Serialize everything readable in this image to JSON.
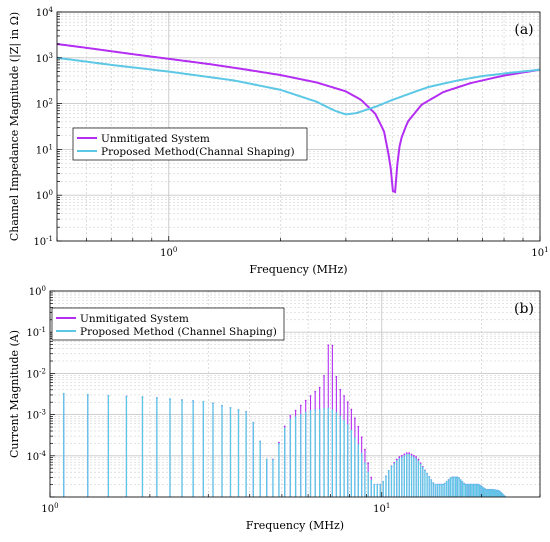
{
  "colors": {
    "unmitigated": "#b42ef2",
    "proposed": "#5cc8e6",
    "grid": "#c8c8c8",
    "frame": "#000000"
  },
  "chart_data": [
    {
      "panel_label": "(a)",
      "type": "line",
      "xscale": "log",
      "yscale": "log",
      "xlim": [
        0.5,
        10
      ],
      "ylim": [
        0.1,
        10000
      ],
      "xlabel": "Frequency (MHz)",
      "ylabel": "Channel Impedance Magnitude (|Z| in Ω)",
      "x_ticks": [
        {
          "v": 1,
          "label": "10",
          "sup": "0"
        },
        {
          "v": 10,
          "label": "10",
          "sup": "1"
        }
      ],
      "y_ticks": [
        {
          "v": 0.1,
          "label": "10",
          "sup": "-1"
        },
        {
          "v": 1,
          "label": "10",
          "sup": "0"
        },
        {
          "v": 10,
          "label": "10",
          "sup": "1"
        },
        {
          "v": 100,
          "label": "10",
          "sup": "2"
        },
        {
          "v": 1000,
          "label": "10",
          "sup": "3"
        },
        {
          "v": 10000,
          "label": "10",
          "sup": "4"
        }
      ],
      "grid": true,
      "legend_position": "left-middle",
      "series": [
        {
          "name": "Unmitigated System",
          "x": [
            0.5,
            0.6,
            0.8,
            1.0,
            1.3,
            1.6,
            2.0,
            2.5,
            3.0,
            3.3,
            3.6,
            3.8,
            3.95,
            4.05,
            4.1,
            4.2,
            4.4,
            4.8,
            5.5,
            6.5,
            8.0,
            10.0
          ],
          "y": [
            2000,
            1650,
            1200,
            950,
            720,
            560,
            420,
            290,
            185,
            120,
            60,
            25,
            5,
            0.6,
            3,
            15,
            40,
            95,
            180,
            280,
            410,
            550
          ]
        },
        {
          "name": "Proposed Method(Channal Shaping)",
          "x": [
            0.5,
            0.7,
            1.0,
            1.5,
            2.0,
            2.5,
            2.8,
            3.0,
            3.2,
            3.6,
            4.0,
            4.5,
            5.0,
            6.0,
            7.0,
            8.5,
            10.0
          ],
          "y": [
            1000,
            700,
            500,
            320,
            200,
            110,
            70,
            58,
            62,
            85,
            120,
            170,
            230,
            320,
            400,
            480,
            550
          ]
        }
      ]
    },
    {
      "panel_label": "(b)",
      "type": "stem",
      "xscale": "log",
      "yscale": "log",
      "xlim": [
        1,
        30
      ],
      "ylim": [
        1e-05,
        1
      ],
      "xlabel": "Frequency (MHz)",
      "ylabel": "Current Magnitude (A)",
      "x_ticks": [
        {
          "v": 1,
          "label": "10",
          "sup": "0"
        },
        {
          "v": 10,
          "label": "10",
          "sup": "1"
        }
      ],
      "y_ticks": [
        {
          "v": 0.0001,
          "label": "10",
          "sup": "-4"
        },
        {
          "v": 0.001,
          "label": "10",
          "sup": "-3"
        },
        {
          "v": 0.01,
          "label": "10",
          "sup": "-2"
        },
        {
          "v": 0.1,
          "label": "10",
          "sup": "-1"
        },
        {
          "v": 1,
          "label": "10",
          "sup": "0"
        }
      ],
      "grid": true,
      "legend_position": "top-left",
      "harmonic_spacing_mhz": 0.2,
      "first_harmonic_mhz": 1.1,
      "series": [
        {
          "name": "Unmitigated System",
          "envelope_x": [
            1.1,
            2.0,
            3.0,
            4.0,
            4.6,
            5.2,
            6.0,
            6.5,
            6.8,
            7.0,
            7.2,
            7.5,
            8.0,
            8.6,
            9.0,
            9.4,
            10.0,
            10.6,
            11.2,
            12.0,
            12.8,
            13.6,
            14.4,
            15.4,
            16.2,
            17.0,
            17.8,
            18.6,
            19.6,
            20.6,
            21.6,
            22.6,
            23.6
          ],
          "envelope_y": [
            0.0032,
            0.0026,
            0.002,
            0.0011,
            5e-05,
            0.0008,
            0.0025,
            0.0045,
            0.012,
            0.19,
            0.012,
            0.004,
            0.0017,
            0.0004,
            0.0001,
            2e-05,
            2e-05,
            5e-05,
            9e-05,
            0.00012,
            9e-05,
            4e-05,
            2e-05,
            2e-05,
            3e-05,
            3e-05,
            2e-05,
            2e-05,
            2e-05,
            1.5e-05,
            1.5e-05,
            1.4e-05,
            1e-05
          ]
        },
        {
          "name": "Proposed Method (Channel Shaping)",
          "envelope_x": [
            1.1,
            2.0,
            3.0,
            4.0,
            4.6,
            5.2,
            6.0,
            6.5,
            6.8,
            7.0,
            7.2,
            7.5,
            8.0,
            8.6,
            9.0,
            9.4,
            10.0,
            10.6,
            11.2,
            12.0,
            12.8,
            13.6,
            14.4,
            15.4,
            16.2,
            17.0,
            17.8,
            18.6,
            19.6,
            20.6,
            21.6,
            22.6,
            23.6
          ],
          "envelope_y": [
            0.0032,
            0.0026,
            0.002,
            0.0011,
            5e-05,
            0.0007,
            0.0012,
            0.0013,
            0.0014,
            0.0014,
            0.0012,
            0.0009,
            0.0005,
            0.00015,
            5e-05,
            2e-05,
            2e-05,
            5e-05,
            8e-05,
            0.00011,
            8e-05,
            4e-05,
            2e-05,
            2e-05,
            3e-05,
            3e-05,
            2e-05,
            2e-05,
            2e-05,
            1.5e-05,
            1.5e-05,
            1.4e-05,
            1e-05
          ]
        }
      ]
    }
  ]
}
